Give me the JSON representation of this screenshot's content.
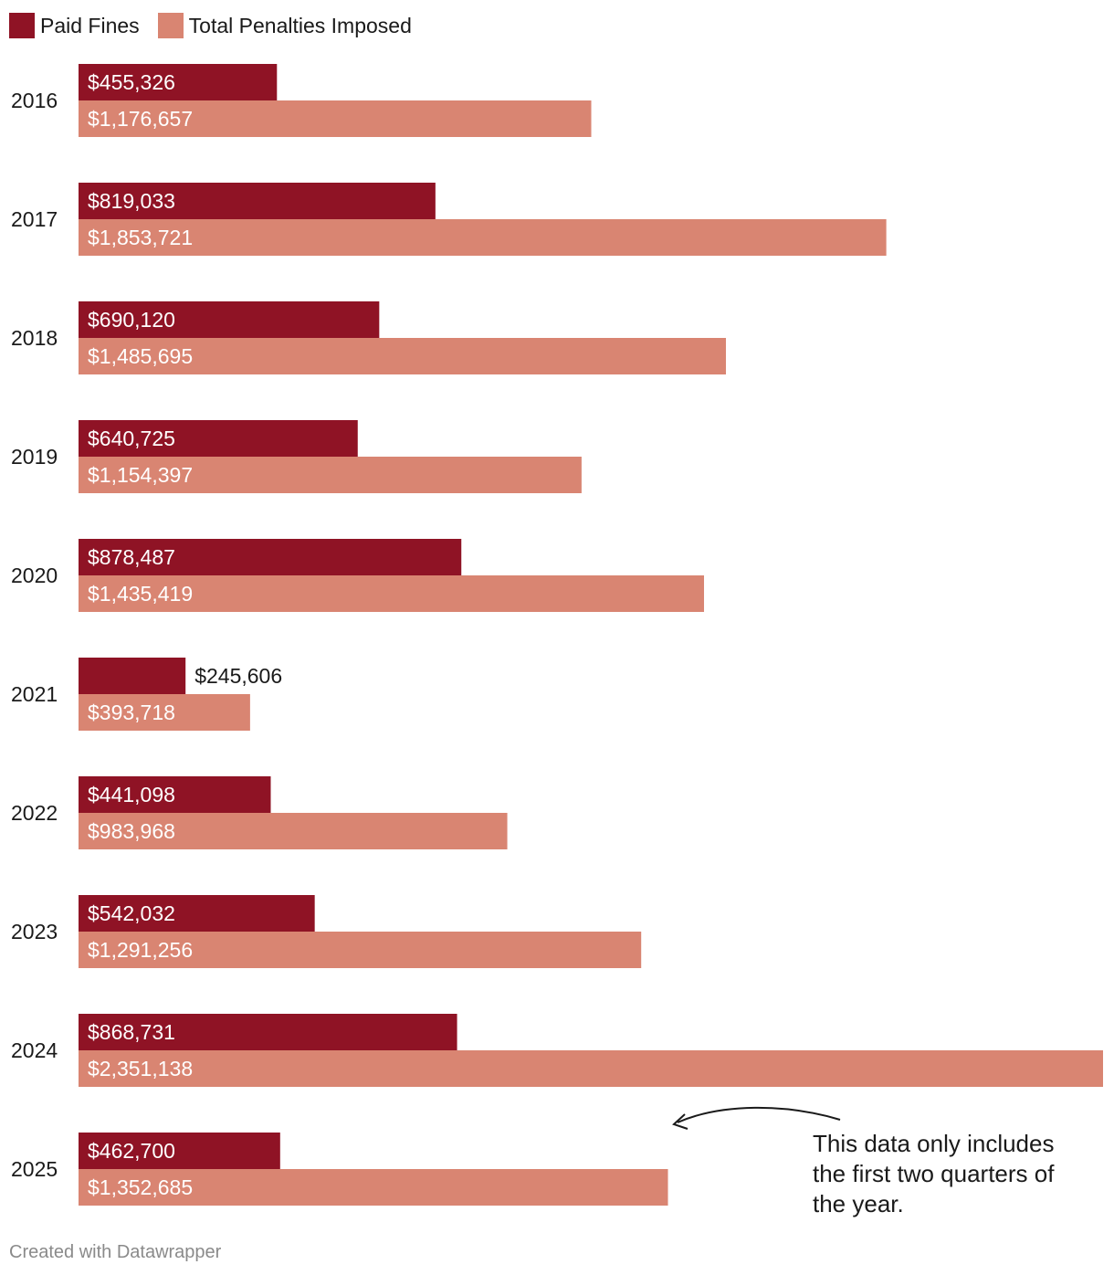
{
  "colors": {
    "paid": "#8f1325",
    "total": "#d98572"
  },
  "chart_data": {
    "type": "bar",
    "orientation": "horizontal",
    "categories": [
      "2016",
      "2017",
      "2018",
      "2019",
      "2020",
      "2021",
      "2022",
      "2023",
      "2024",
      "2025"
    ],
    "series": [
      {
        "name": "Paid Fines",
        "values": [
          455326,
          819033,
          690120,
          640725,
          878487,
          245606,
          441098,
          542032,
          868731,
          462700
        ],
        "labels": [
          "$455,326",
          "$819,033",
          "$690,120",
          "$640,725",
          "$878,487",
          "$245,606",
          "$441,098",
          "$542,032",
          "$868,731",
          "$462,700"
        ]
      },
      {
        "name": "Total Penalties Imposed",
        "values": [
          1176657,
          1853721,
          1485695,
          1154397,
          1435419,
          393718,
          983968,
          1291256,
          2351138,
          1352685
        ],
        "labels": [
          "$1,176,657",
          "$1,853,721",
          "$1,485,695",
          "$1,154,397",
          "$1,435,419",
          "$393,718",
          "$983,968",
          "$1,291,256",
          "$2,351,138",
          "$1,352,685"
        ]
      }
    ],
    "xlim": [
      0,
      2351138
    ],
    "legend_position": "top-left",
    "grid": false,
    "annotation": "This data only includes the first two quarters of the year."
  },
  "footer": "Created with Datawrapper"
}
